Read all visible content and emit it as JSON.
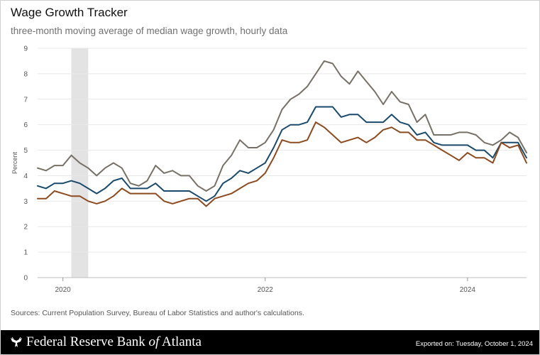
{
  "header": {
    "title": "Wage Growth Tracker",
    "subtitle": "three-month moving average of median wage growth, hourly data"
  },
  "chart_data": {
    "type": "line",
    "title": "Wage Growth Tracker",
    "subtitle": "three-month moving average of median wage growth, hourly data",
    "xlabel": "",
    "ylabel": "Percent",
    "xlim": [
      "2019-10",
      "2024-08"
    ],
    "ylim": [
      0,
      9
    ],
    "yticks": [
      0,
      1,
      2,
      3,
      4,
      5,
      6,
      7,
      8,
      9
    ],
    "xticks": [
      {
        "value": "2020-01",
        "label": "2020"
      },
      {
        "value": "2022-01",
        "label": "2022"
      },
      {
        "value": "2024-01",
        "label": "2024"
      }
    ],
    "grid": "horizontal",
    "recession_band": [
      "2020-02",
      "2020-04"
    ],
    "x": [
      "2019-10",
      "2019-11",
      "2019-12",
      "2020-01",
      "2020-02",
      "2020-03",
      "2020-04",
      "2020-05",
      "2020-06",
      "2020-07",
      "2020-08",
      "2020-09",
      "2020-10",
      "2020-11",
      "2020-12",
      "2021-01",
      "2021-02",
      "2021-03",
      "2021-04",
      "2021-05",
      "2021-06",
      "2021-07",
      "2021-08",
      "2021-09",
      "2021-10",
      "2021-11",
      "2021-12",
      "2022-01",
      "2022-02",
      "2022-03",
      "2022-04",
      "2022-05",
      "2022-06",
      "2022-07",
      "2022-08",
      "2022-09",
      "2022-10",
      "2022-11",
      "2022-12",
      "2023-01",
      "2023-02",
      "2023-03",
      "2023-04",
      "2023-05",
      "2023-06",
      "2023-07",
      "2023-08",
      "2023-09",
      "2023-10",
      "2023-11",
      "2023-12",
      "2024-01",
      "2024-02",
      "2024-03",
      "2024-04",
      "2024-05",
      "2024-06",
      "2024-07",
      "2024-08"
    ],
    "series": [
      {
        "color": "#777066",
        "values": [
          4.3,
          4.2,
          4.4,
          4.4,
          4.8,
          4.5,
          4.3,
          4.0,
          4.3,
          4.5,
          4.3,
          3.7,
          3.6,
          3.8,
          4.4,
          4.1,
          4.2,
          4.0,
          4.0,
          3.6,
          3.4,
          3.6,
          4.4,
          4.8,
          5.4,
          5.1,
          5.1,
          5.3,
          5.8,
          6.6,
          7.0,
          7.2,
          7.5,
          8.0,
          8.5,
          8.4,
          7.9,
          7.6,
          8.1,
          7.7,
          7.3,
          6.8,
          7.3,
          6.9,
          6.8,
          6.1,
          6.4,
          5.6,
          5.6,
          5.6,
          5.7,
          5.7,
          5.6,
          5.3,
          5.2,
          5.4,
          5.7,
          5.5,
          4.9
        ]
      },
      {
        "color": "#1a4a6b",
        "values": [
          3.6,
          3.5,
          3.7,
          3.7,
          3.8,
          3.7,
          3.5,
          3.3,
          3.5,
          3.8,
          3.9,
          3.5,
          3.5,
          3.5,
          3.7,
          3.4,
          3.4,
          3.4,
          3.4,
          3.2,
          3.0,
          3.2,
          3.7,
          3.9,
          4.2,
          4.1,
          4.3,
          4.5,
          5.1,
          5.8,
          6.0,
          6.0,
          6.1,
          6.7,
          6.7,
          6.7,
          6.3,
          6.4,
          6.4,
          6.1,
          6.1,
          6.1,
          6.4,
          6.1,
          6.0,
          5.6,
          5.7,
          5.3,
          5.2,
          5.2,
          5.2,
          5.2,
          5.0,
          5.0,
          4.7,
          5.3,
          5.3,
          5.3,
          4.7
        ]
      },
      {
        "color": "#8b4a1f",
        "values": [
          3.1,
          3.1,
          3.4,
          3.3,
          3.2,
          3.2,
          3.0,
          2.9,
          3.0,
          3.2,
          3.5,
          3.3,
          3.3,
          3.3,
          3.3,
          3.0,
          2.9,
          3.0,
          3.1,
          3.1,
          2.8,
          3.1,
          3.2,
          3.3,
          3.5,
          3.7,
          3.8,
          4.1,
          4.7,
          5.4,
          5.3,
          5.3,
          5.4,
          6.1,
          5.9,
          5.6,
          5.3,
          5.4,
          5.5,
          5.3,
          5.5,
          5.8,
          5.9,
          5.7,
          5.7,
          5.4,
          5.4,
          5.2,
          5.0,
          4.8,
          4.6,
          4.9,
          4.7,
          4.7,
          4.5,
          5.3,
          5.1,
          5.2,
          4.5
        ]
      }
    ]
  },
  "source": "Sources: Current Population Survey, Bureau of Labor Statistics and author's calculations.",
  "footer": {
    "logo_text_1": "Federal Reserve Bank ",
    "logo_text_2": "of",
    "logo_text_3": " Atlanta",
    "exported": "Exported on: Tuesday, October 1, 2024"
  }
}
